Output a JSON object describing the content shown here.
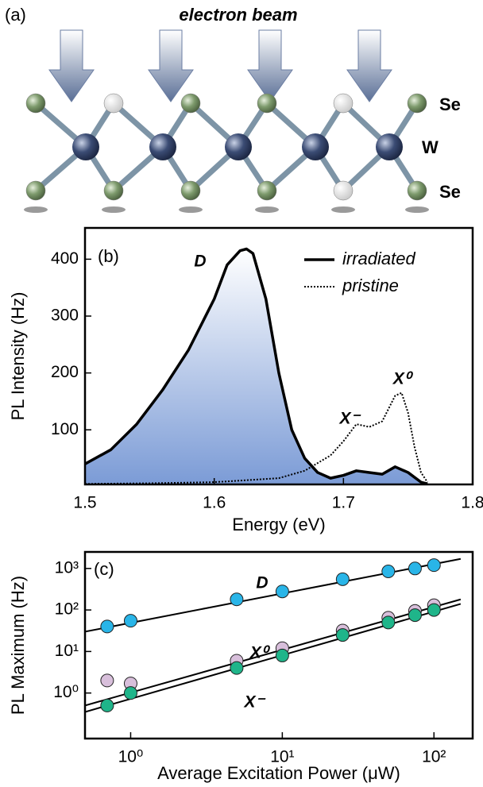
{
  "diagram": {
    "label": "(a)",
    "title": "electron beam",
    "atom_labels": [
      "Se",
      "W",
      "Se"
    ]
  },
  "chart_data": [
    {
      "type": "line",
      "panel": "(b)",
      "x_label": "Energy (eV)",
      "y_label": "PL Intensity (Hz)",
      "xlim": [
        1.5,
        1.8
      ],
      "xticks": [
        1.5,
        1.6,
        1.7,
        1.8
      ],
      "ylim": [
        4,
        455
      ],
      "yticks": [
        100,
        200,
        300,
        400
      ],
      "legend": "top-right",
      "annotations": [
        "D",
        "X⁻",
        "X⁰"
      ],
      "series": [
        {
          "name": "irradiated",
          "color": "#000000",
          "dash": "solid",
          "fill": true,
          "x": [
            1.5,
            1.52,
            1.54,
            1.56,
            1.58,
            1.6,
            1.61,
            1.62,
            1.625,
            1.63,
            1.64,
            1.65,
            1.66,
            1.67,
            1.68,
            1.69,
            1.7,
            1.71,
            1.72,
            1.73,
            1.74,
            1.75,
            1.76,
            1.765
          ],
          "values": [
            40,
            65,
            110,
            170,
            240,
            330,
            390,
            415,
            418,
            410,
            330,
            200,
            100,
            50,
            25,
            15,
            20,
            28,
            25,
            22,
            35,
            25,
            8,
            5
          ]
        },
        {
          "name": "pristine",
          "color": "#000000",
          "dash": "dotted",
          "fill": false,
          "x": [
            1.5,
            1.55,
            1.6,
            1.65,
            1.67,
            1.69,
            1.7,
            1.71,
            1.72,
            1.73,
            1.74,
            1.745,
            1.75,
            1.755,
            1.76,
            1.765
          ],
          "values": [
            5,
            6,
            8,
            15,
            28,
            55,
            80,
            110,
            105,
            115,
            160,
            165,
            130,
            70,
            25,
            8
          ]
        }
      ]
    },
    {
      "type": "scatter",
      "panel": "(c)",
      "x_label": "Average Excitation Power (μW)",
      "y_label": "PL Maximum (Hz)",
      "xscale": "log",
      "yscale": "log",
      "xlim": [
        0.5,
        180
      ],
      "xticks": [
        {
          "value": 1,
          "label": "10⁰"
        },
        {
          "value": 10,
          "label": "10¹"
        },
        {
          "value": 100,
          "label": "10²"
        }
      ],
      "ylim": [
        0.08,
        2500
      ],
      "yticks": [
        {
          "value": 1,
          "label": "10⁰"
        },
        {
          "value": 10,
          "label": "10¹"
        },
        {
          "value": 100,
          "label": "10²"
        },
        {
          "value": 1000,
          "label": "10³"
        }
      ],
      "annotations": [
        "D",
        "X⁰",
        "X⁻"
      ],
      "x": [
        0.7,
        1,
        5,
        10,
        25,
        50,
        75,
        100
      ],
      "series": [
        {
          "color": "#29b5e8",
          "values": [
            40,
            55,
            180,
            280,
            550,
            850,
            1000,
            1200
          ]
        },
        {
          "color": "#d8bfdb",
          "values": [
            2,
            1.7,
            6,
            12,
            32,
            65,
            95,
            130
          ]
        },
        {
          "color": "#1fb58a",
          "values": [
            0.5,
            1.0,
            4,
            8,
            25,
            50,
            75,
            100
          ]
        }
      ],
      "fits": [
        {
          "color": "#000000",
          "x": [
            0.5,
            150
          ],
          "values": [
            30,
            1700
          ]
        },
        {
          "color": "#000000",
          "x": [
            0.5,
            150
          ],
          "values": [
            0.5,
            180
          ]
        },
        {
          "color": "#000000",
          "x": [
            0.5,
            150
          ],
          "values": [
            0.35,
            140
          ]
        }
      ]
    }
  ]
}
